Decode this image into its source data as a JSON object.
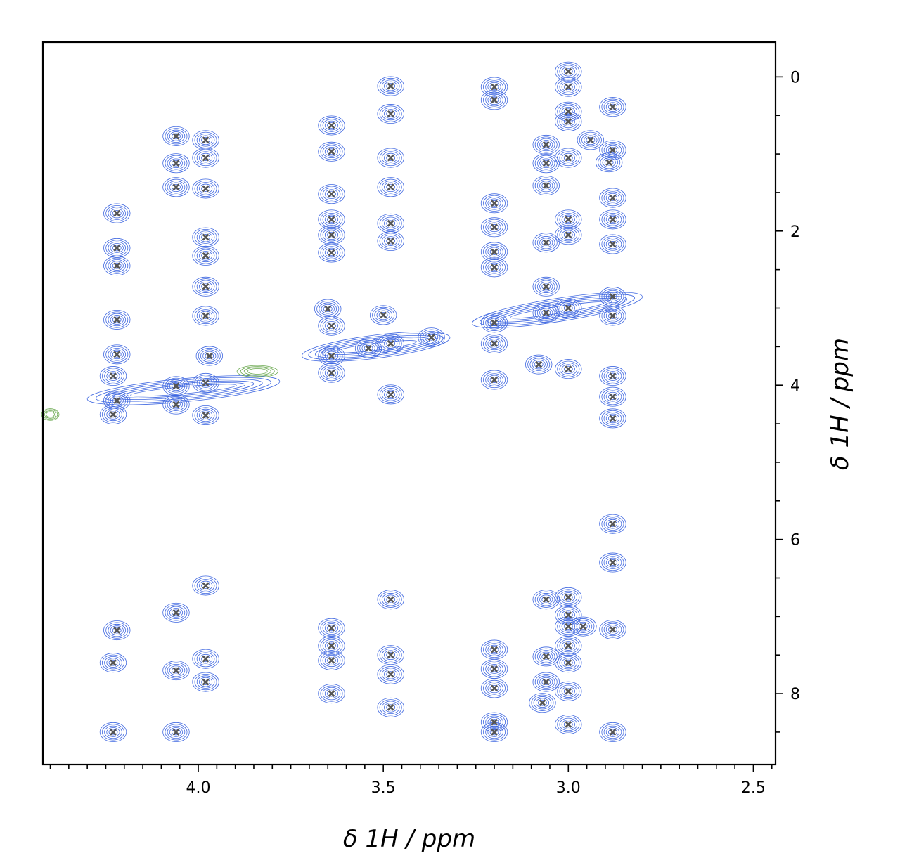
{
  "chart_data": {
    "type": "scatter",
    "subtype": "2d-nmr-contour",
    "title": "",
    "xlabel": "δ 1H / ppm",
    "ylabel": "δ 1H / ppm",
    "xlim": [
      4.42,
      2.44
    ],
    "ylim": [
      8.92,
      -0.45
    ],
    "x_inverted": true,
    "y_inverted": true,
    "y_axis_position": "right",
    "grid": false,
    "legend": "none",
    "x_ticks": [
      4.0,
      3.5,
      3.0,
      2.5
    ],
    "x_tick_labels": [
      "4.0",
      "3.5",
      "3.0",
      "2.5"
    ],
    "y_ticks": [
      0,
      2,
      4,
      6,
      8
    ],
    "y_tick_labels": [
      "0",
      "2",
      "4",
      "6",
      "8"
    ],
    "colors": {
      "positive_contour": "#4169e1",
      "negative_contour": "#6aa84f",
      "peak_marker": "#555555"
    },
    "peaks": [
      [
        4.22,
        1.77
      ],
      [
        4.22,
        2.22
      ],
      [
        4.22,
        2.45
      ],
      [
        4.22,
        3.15
      ],
      [
        4.22,
        3.6
      ],
      [
        4.23,
        3.88
      ],
      [
        4.22,
        4.2
      ],
      [
        4.23,
        4.38
      ],
      [
        4.22,
        7.18
      ],
      [
        4.23,
        7.6
      ],
      [
        4.23,
        8.5
      ],
      [
        4.06,
        0.77
      ],
      [
        4.06,
        1.12
      ],
      [
        4.06,
        1.43
      ],
      [
        4.06,
        4.01
      ],
      [
        4.06,
        4.25
      ],
      [
        4.06,
        6.95
      ],
      [
        4.06,
        7.7
      ],
      [
        4.06,
        8.5
      ],
      [
        3.98,
        0.82
      ],
      [
        3.98,
        1.05
      ],
      [
        3.98,
        1.45
      ],
      [
        3.98,
        2.08
      ],
      [
        3.98,
        2.32
      ],
      [
        3.98,
        2.72
      ],
      [
        3.98,
        3.1
      ],
      [
        3.97,
        3.62
      ],
      [
        3.98,
        3.97
      ],
      [
        3.98,
        4.39
      ],
      [
        3.98,
        6.6
      ],
      [
        3.98,
        7.55
      ],
      [
        3.98,
        7.85
      ],
      [
        3.64,
        0.63
      ],
      [
        3.64,
        0.97
      ],
      [
        3.64,
        1.52
      ],
      [
        3.64,
        1.85
      ],
      [
        3.64,
        2.05
      ],
      [
        3.64,
        2.28
      ],
      [
        3.65,
        3.01
      ],
      [
        3.64,
        3.23
      ],
      [
        3.64,
        3.62
      ],
      [
        3.64,
        3.84
      ],
      [
        3.64,
        7.15
      ],
      [
        3.64,
        7.38
      ],
      [
        3.64,
        7.57
      ],
      [
        3.64,
        8.0
      ],
      [
        3.48,
        0.12
      ],
      [
        3.48,
        0.48
      ],
      [
        3.48,
        1.05
      ],
      [
        3.48,
        1.43
      ],
      [
        3.48,
        1.9
      ],
      [
        3.48,
        2.13
      ],
      [
        3.5,
        3.09
      ],
      [
        3.48,
        3.46
      ],
      [
        3.54,
        3.52
      ],
      [
        3.37,
        3.38
      ],
      [
        3.48,
        4.12
      ],
      [
        3.48,
        6.78
      ],
      [
        3.48,
        7.5
      ],
      [
        3.48,
        7.75
      ],
      [
        3.48,
        8.18
      ],
      [
        3.2,
        0.13
      ],
      [
        3.2,
        0.3
      ],
      [
        3.2,
        1.64
      ],
      [
        3.2,
        1.95
      ],
      [
        3.2,
        2.27
      ],
      [
        3.2,
        2.47
      ],
      [
        3.2,
        3.19
      ],
      [
        3.2,
        3.46
      ],
      [
        3.2,
        3.93
      ],
      [
        3.2,
        7.43
      ],
      [
        3.2,
        7.68
      ],
      [
        3.2,
        7.93
      ],
      [
        3.2,
        8.37
      ],
      [
        3.2,
        8.5
      ],
      [
        3.06,
        0.88
      ],
      [
        3.06,
        1.12
      ],
      [
        3.06,
        1.41
      ],
      [
        3.06,
        2.15
      ],
      [
        3.06,
        2.72
      ],
      [
        3.06,
        3.06
      ],
      [
        3.08,
        3.73
      ],
      [
        3.06,
        6.78
      ],
      [
        3.06,
        7.52
      ],
      [
        3.06,
        7.85
      ],
      [
        3.07,
        8.12
      ],
      [
        3.0,
        -0.07
      ],
      [
        3.0,
        0.13
      ],
      [
        3.0,
        0.45
      ],
      [
        3.0,
        0.58
      ],
      [
        3.0,
        1.05
      ],
      [
        3.0,
        1.85
      ],
      [
        3.0,
        2.05
      ],
      [
        3.0,
        3.0
      ],
      [
        3.0,
        3.79
      ],
      [
        3.0,
        6.75
      ],
      [
        3.0,
        6.98
      ],
      [
        3.0,
        7.13
      ],
      [
        3.0,
        7.38
      ],
      [
        3.0,
        7.6
      ],
      [
        3.0,
        7.97
      ],
      [
        3.0,
        8.4
      ],
      [
        2.96,
        7.13
      ],
      [
        2.94,
        0.82
      ],
      [
        2.88,
        0.39
      ],
      [
        2.88,
        0.95
      ],
      [
        2.89,
        1.11
      ],
      [
        2.88,
        1.57
      ],
      [
        2.88,
        1.85
      ],
      [
        2.88,
        2.17
      ],
      [
        2.88,
        2.85
      ],
      [
        2.88,
        3.1
      ],
      [
        2.88,
        3.88
      ],
      [
        2.88,
        4.15
      ],
      [
        2.88,
        4.43
      ],
      [
        2.88,
        5.8
      ],
      [
        2.88,
        6.3
      ],
      [
        2.88,
        7.17
      ],
      [
        2.88,
        8.5
      ]
    ]
  }
}
